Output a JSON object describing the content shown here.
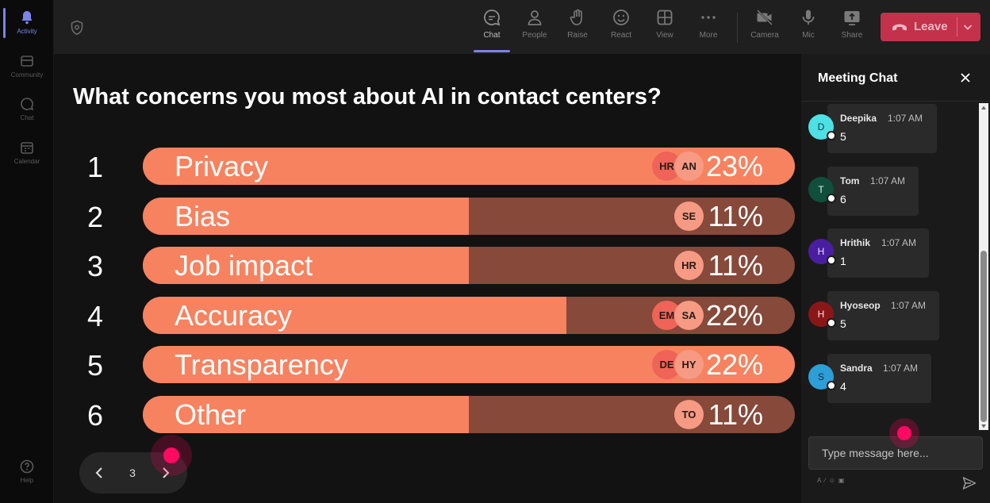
{
  "rail": {
    "items": [
      {
        "label": "Activity",
        "icon": "bell-icon",
        "active": true
      },
      {
        "label": "Community",
        "icon": "community-icon"
      },
      {
        "label": "Chat",
        "icon": "chat-icon"
      },
      {
        "label": "Calendar",
        "icon": "calendar-icon"
      }
    ],
    "help_label": "Help"
  },
  "toolbar": {
    "chat": "Chat",
    "people": "People",
    "raise": "Raise",
    "react": "React",
    "view": "View",
    "more": "More",
    "camera": "Camera",
    "mic": "Mic",
    "share": "Share",
    "leave": "Leave"
  },
  "poll": {
    "question": "What concerns you most about AI in contact centers?",
    "options": [
      {
        "num": "1",
        "label": "Privacy",
        "pct": "23%",
        "fill": 1.0,
        "avatars": [
          "HR",
          "AN"
        ]
      },
      {
        "num": "2",
        "label": "Bias",
        "pct": "11%",
        "fill": 0.5,
        "avatars": [
          "SE"
        ]
      },
      {
        "num": "3",
        "label": "Job impact",
        "pct": "11%",
        "fill": 0.5,
        "avatars": [
          "HR"
        ]
      },
      {
        "num": "4",
        "label": "Accuracy",
        "pct": "22%",
        "fill": 0.65,
        "avatars": [
          "EM",
          "SA"
        ]
      },
      {
        "num": "5",
        "label": "Transparency",
        "pct": "22%",
        "fill": 1.0,
        "avatars": [
          "DE",
          "HY"
        ]
      },
      {
        "num": "6",
        "label": "Other",
        "pct": "11%",
        "fill": 0.5,
        "avatars": [
          "TO"
        ]
      }
    ],
    "page": "3"
  },
  "chat": {
    "title": "Meeting Chat",
    "messages": [
      {
        "initial": "D",
        "name": "Deepika",
        "time": "1:07 AM",
        "text": "5",
        "color": "#4de0e5",
        "text_color": "#153b3d"
      },
      {
        "initial": "T",
        "name": "Tom",
        "time": "1:07 AM",
        "text": "6",
        "color": "#0f4f3b",
        "text_color": "#d8efe6"
      },
      {
        "initial": "H",
        "name": "Hrithik",
        "time": "1:07 AM",
        "text": "1",
        "color": "#4a1ea0",
        "text_color": "#e7dcff"
      },
      {
        "initial": "H",
        "name": "Hyoseop",
        "time": "1:07 AM",
        "text": "5",
        "color": "#8a1717",
        "text_color": "#ffdede"
      },
      {
        "initial": "S",
        "name": "Sandra",
        "time": "1:07 AM",
        "text": "4",
        "color": "#2d9ed6",
        "text_color": "#0d2d3d"
      }
    ],
    "input_placeholder": "Type message here..."
  }
}
